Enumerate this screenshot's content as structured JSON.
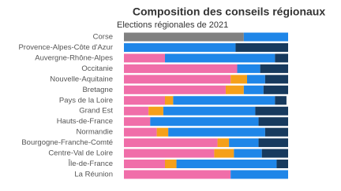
{
  "chart_data": {
    "type": "stacked-bar",
    "orientation": "horizontal",
    "title": "Composition des conseils régionaux",
    "subtitle": "Elections régionales de 2021",
    "categories": [
      "Corse",
      "Provence-Alpes-Côte d'Azur",
      "Auvergne-Rhône-Alpes",
      "Occitanie",
      "Nouvelle-Aquitaine",
      "Bretagne",
      "Pays de la Loire",
      "Grand Est",
      "Hauts-de-France",
      "Normandie",
      "Bourgogne-Franche-Comté",
      "Centre-Val de Loire",
      "Île-de-France",
      "La Réunion"
    ],
    "xlim": [
      0,
      100
    ],
    "series": [
      {
        "color": "#808080",
        "values": [
          73,
          null,
          null,
          null,
          null,
          null,
          null,
          null,
          null,
          null,
          null,
          null,
          null,
          null
        ]
      },
      {
        "color": "#f06ea9",
        "values": [
          null,
          null,
          25,
          69,
          65,
          62,
          25,
          15,
          16,
          20,
          57,
          55,
          25,
          65
        ]
      },
      {
        "color": "#f5a01a",
        "values": [
          null,
          null,
          null,
          null,
          10,
          11,
          5,
          9,
          null,
          7,
          7,
          12,
          7,
          null
        ]
      },
      {
        "color": "#1f86e8",
        "values": [
          27,
          68,
          67,
          14,
          11,
          12,
          62,
          56,
          66,
          59,
          18,
          17,
          61,
          35
        ]
      },
      {
        "color": "#173a5e",
        "values": [
          null,
          32,
          8,
          17,
          14,
          15,
          7,
          20,
          18,
          14,
          18,
          16,
          7,
          null
        ]
      }
    ]
  }
}
